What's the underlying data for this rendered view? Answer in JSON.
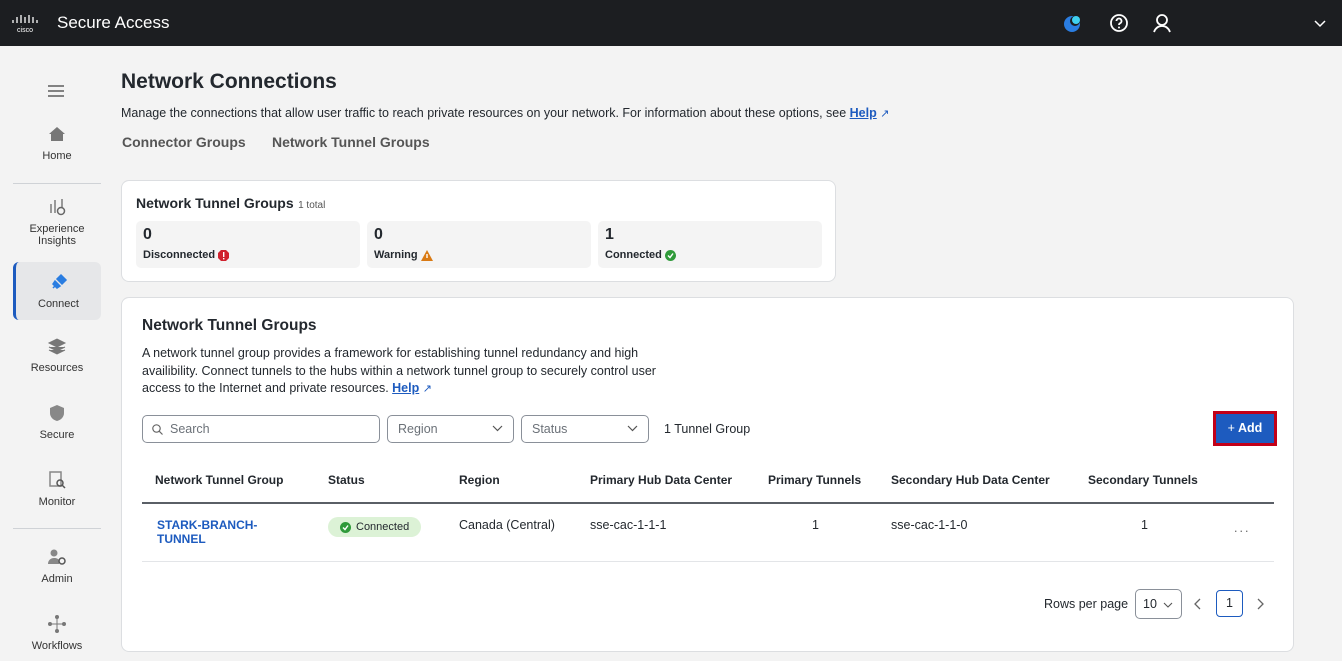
{
  "header": {
    "brand": "cisco",
    "app_title": "Secure Access",
    "icons": [
      "assistant-icon",
      "help-icon",
      "user-icon",
      "chevron-down-icon"
    ]
  },
  "sidebar": {
    "items": [
      {
        "label": "Home"
      },
      {
        "label": "Experience Insights"
      },
      {
        "label": "Connect",
        "active": true
      },
      {
        "label": "Resources"
      },
      {
        "label": "Secure"
      },
      {
        "label": "Monitor"
      },
      {
        "label": "Admin"
      },
      {
        "label": "Workflows"
      }
    ]
  },
  "page": {
    "title": "Network Connections",
    "description": "Manage the connections that allow user traffic to reach private resources on your network. For information about these options, see",
    "help": "Help",
    "tabs": [
      "Connector Groups",
      "Network Tunnel Groups"
    ]
  },
  "summary": {
    "title": "Network Tunnel Groups",
    "total": "1 total",
    "tiles": [
      {
        "count": "0",
        "label": "Disconnected",
        "color": "#d0222e"
      },
      {
        "count": "0",
        "label": "Warning",
        "color": "#d97a14"
      },
      {
        "count": "1",
        "label": "Connected",
        "color": "#2f9a3a"
      }
    ]
  },
  "groups": {
    "title": "Network Tunnel Groups",
    "description": "A network tunnel group provides a framework for establishing tunnel redundancy and high availibility. Connect tunnels to the hubs within a network tunnel group to securely control user access to the Internet and private resources.",
    "help": "Help",
    "search_placeholder": "Search",
    "region_label": "Region",
    "status_label": "Status",
    "count": "1 Tunnel Group",
    "add_label": "Add",
    "columns": [
      "Network Tunnel Group",
      "Status",
      "Region",
      "Primary Hub Data Center",
      "Primary Tunnels",
      "Secondary Hub Data Center",
      "Secondary Tunnels"
    ],
    "rows": [
      {
        "name": "STARK-BRANCH-TUNNEL",
        "status": "Connected",
        "region": "Canada (Central)",
        "primary_dc": "sse-cac-1-1-1",
        "primary_tunnels": "1",
        "secondary_dc": "sse-cac-1-1-0",
        "secondary_tunnels": "1",
        "more": "..."
      }
    ],
    "pagination": {
      "rows_label": "Rows per page",
      "rows_value": "10",
      "page": "1"
    }
  }
}
